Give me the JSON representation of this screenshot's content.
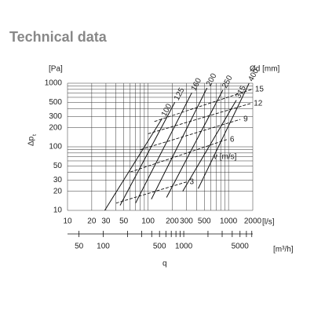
{
  "chart_data": {
    "type": "line",
    "title": "Technical data",
    "y_label": "Δp",
    "y_label_sub": "t",
    "y_unit": "[Pa]",
    "x_unit": "[l/s]",
    "x2_unit": "[m³/h]",
    "x_label": "q",
    "series_title": "Ød [mm]",
    "velocity_title": "v [m/s]",
    "log_x": true,
    "log_y": true,
    "grid": true,
    "xlim": [
      10,
      2000
    ],
    "xticks": [
      10,
      20,
      30,
      50,
      100,
      200,
      300,
      500,
      1000,
      2000
    ],
    "xminor": [
      40,
      60,
      70,
      80,
      90,
      400,
      600,
      700,
      800,
      900
    ],
    "ylim": [
      10,
      1000
    ],
    "yticks": [
      10,
      20,
      30,
      50,
      100,
      200,
      300,
      500,
      1000
    ],
    "yminor": [
      40,
      60,
      70,
      80,
      90,
      400,
      600,
      700,
      800,
      900
    ],
    "x2lim": [
      36,
      7200
    ],
    "x2ticks": [
      50,
      100,
      500,
      1000,
      5000
    ],
    "x2minor": [
      200,
      300,
      400,
      600,
      700,
      800,
      900,
      2000,
      3000,
      4000,
      6000,
      7000
    ],
    "series": [
      {
        "name": "100",
        "color": "#111",
        "x": [
          29,
          150
        ],
        "values": [
          10,
          280
        ]
      },
      {
        "name": "125",
        "color": "#111",
        "x": [
          45,
          215
        ],
        "values": [
          12,
          500
        ]
      },
      {
        "name": "160",
        "color": "#111",
        "x": [
          70,
          350
        ],
        "values": [
          13,
          710
        ]
      },
      {
        "name": "200",
        "color": "#111",
        "x": [
          110,
          540
        ],
        "values": [
          15,
          840
        ]
      },
      {
        "name": "250",
        "color": "#111",
        "x": [
          170,
          850
        ],
        "values": [
          16,
          780
        ]
      },
      {
        "name": "315",
        "color": "#111",
        "x": [
          270,
          1250
        ],
        "values": [
          20,
          540
        ]
      },
      {
        "name": "400",
        "color": "#111",
        "x": [
          420,
          1800
        ],
        "values": [
          22,
          1000
        ]
      }
    ],
    "velocity_series": [
      {
        "name": "3",
        "color": "#111",
        "x": [
          40,
          300
        ],
        "values": [
          13,
          28
        ]
      },
      {
        "name": "6",
        "color": "#111",
        "x": [
          60,
          950
        ],
        "values": [
          40,
          130
        ]
      },
      {
        "name": "9",
        "color": "#111",
        "x": [
          80,
          1400
        ],
        "values": [
          90,
          270
        ]
      },
      {
        "name": "12",
        "color": "#111",
        "x": [
          100,
          1880
        ],
        "values": [
          160,
          480
        ]
      },
      {
        "name": "15",
        "color": "#111",
        "x": [
          120,
          1950
        ],
        "values": [
          250,
          800
        ]
      }
    ]
  }
}
